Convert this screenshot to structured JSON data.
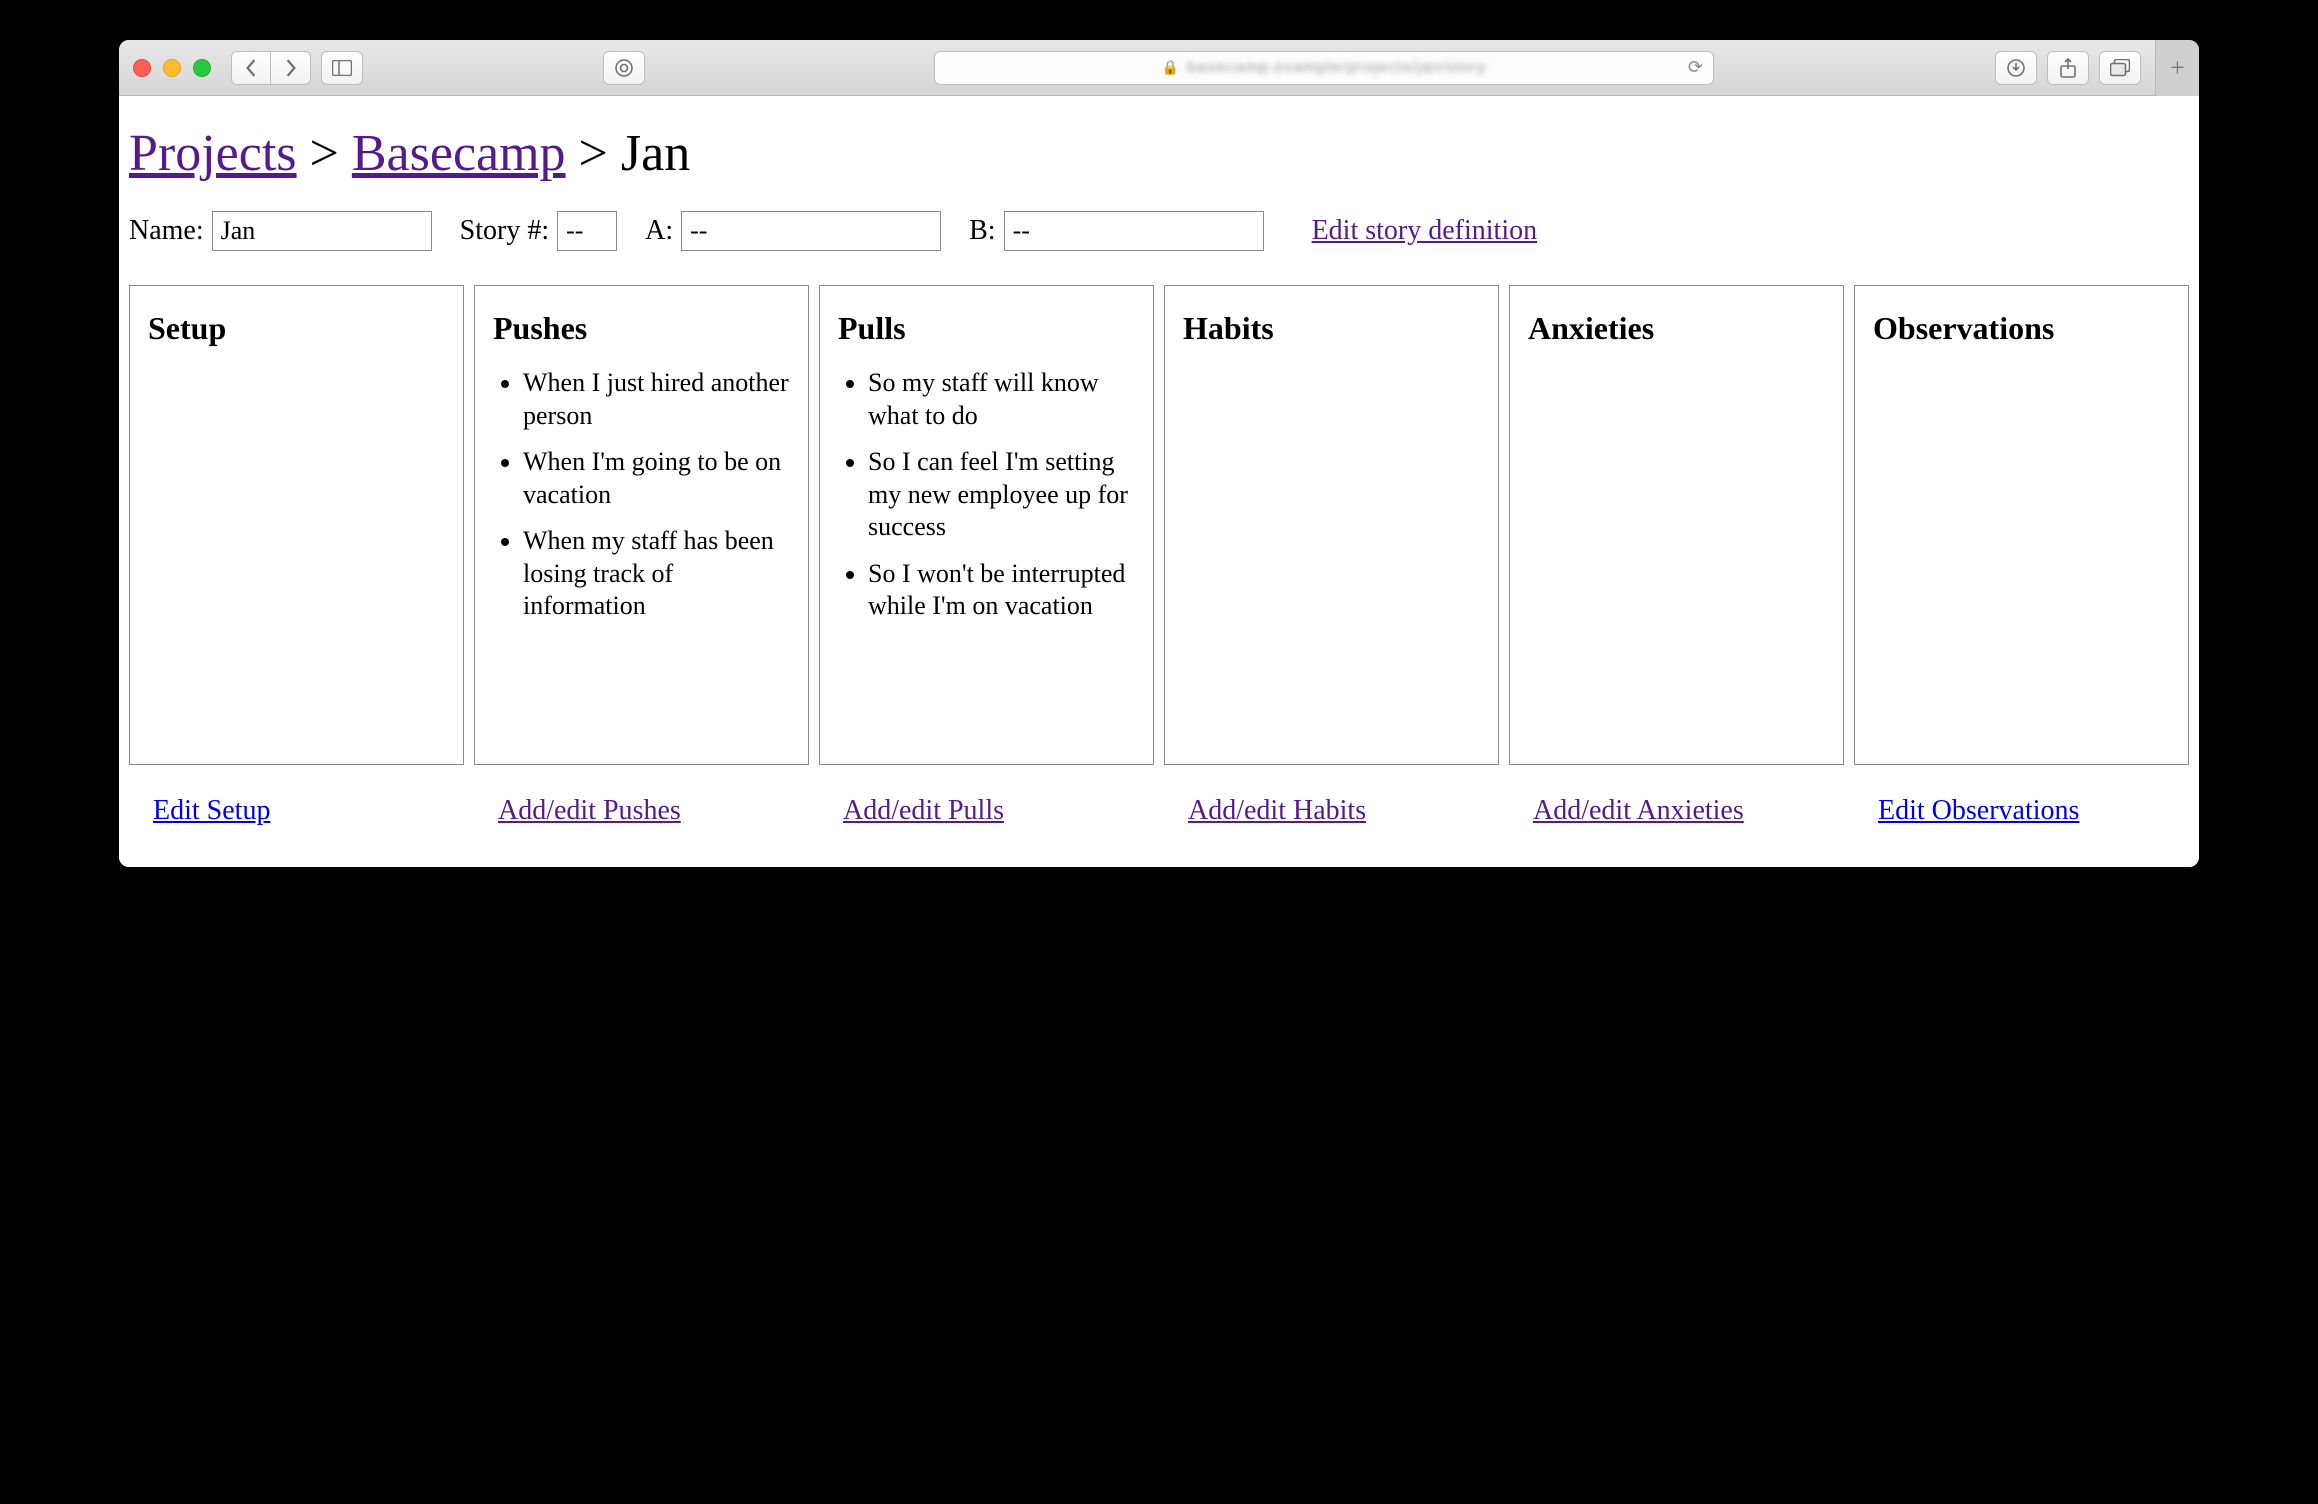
{
  "browser": {
    "url_blur": "basecamp.example/projects/jan/story",
    "traffic_colors": {
      "red": "#ff5f57",
      "yellow": "#ffbd2e",
      "green": "#28c940"
    }
  },
  "breadcrumb": {
    "root": "Projects",
    "project": "Basecamp",
    "current": "Jan"
  },
  "form": {
    "name_label": "Name:",
    "name_value": "Jan",
    "story_label": "Story #:",
    "story_value": "--",
    "a_label": "A:",
    "a_value": "--",
    "b_label": "B:",
    "b_value": "--",
    "edit_story_link": "Edit story definition"
  },
  "columns": {
    "setup": {
      "title": "Setup",
      "items": []
    },
    "pushes": {
      "title": "Pushes",
      "items": [
        "When I just hired another person",
        "When I'm going to be on vacation",
        "When my staff has been losing track of information"
      ]
    },
    "pulls": {
      "title": "Pulls",
      "items": [
        "So my staff will know what to do",
        "So I can feel I'm setting my new employee up for success",
        "So I won't be interrupted while I'm on vacation"
      ]
    },
    "habits": {
      "title": "Habits",
      "items": []
    },
    "anxieties": {
      "title": "Anxieties",
      "items": []
    },
    "observations": {
      "title": "Observations",
      "items": []
    }
  },
  "edit_links": {
    "setup": {
      "text": "Edit Setup",
      "state": "unvisited"
    },
    "pushes": {
      "text": "Add/edit Pushes",
      "state": "visited"
    },
    "pulls": {
      "text": "Add/edit Pulls",
      "state": "visited"
    },
    "habits": {
      "text": "Add/edit Habits",
      "state": "visited"
    },
    "anxieties": {
      "text": "Add/edit Anxieties",
      "state": "visited"
    },
    "observations": {
      "text": "Edit Observations",
      "state": "unvisited"
    }
  },
  "input_widths": {
    "name": 220,
    "story": 60,
    "a": 260,
    "b": 260
  },
  "col_min_height": 480
}
